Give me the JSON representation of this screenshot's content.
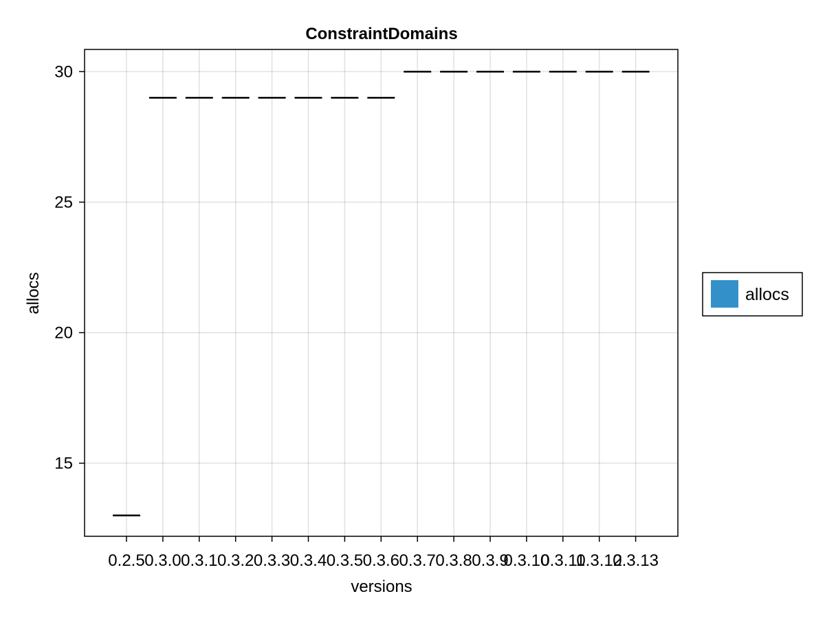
{
  "chart_data": {
    "type": "crossbar",
    "title": "ConstraintDomains",
    "xlabel": "versions",
    "ylabel": "allocs",
    "categories": [
      "0.2.5",
      "0.3.0",
      "0.3.1",
      "0.3.2",
      "0.3.3",
      "0.3.4",
      "0.3.5",
      "0.3.6",
      "0.3.7",
      "0.3.8",
      "0.3.9",
      "0.3.10",
      "0.3.11",
      "0.3.12",
      "0.3.13"
    ],
    "series": [
      {
        "name": "allocs",
        "values": [
          13,
          29,
          29,
          29,
          29,
          29,
          29,
          29,
          30,
          30,
          30,
          30,
          30,
          30,
          30
        ]
      }
    ],
    "yticks": [
      15,
      20,
      25,
      30
    ],
    "ylim": [
      12.2,
      30.85
    ],
    "grid": true,
    "legend": {
      "position": "right",
      "swatch_color": "#3490c8"
    },
    "mark_color": "#000000"
  }
}
